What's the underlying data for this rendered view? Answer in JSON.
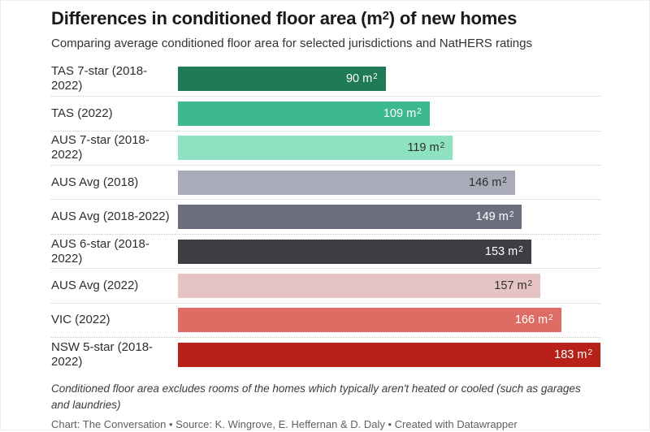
{
  "header": {
    "title_pre": "Differences in conditioned floor area (m",
    "title_sup": "2",
    "title_post": ") of new homes",
    "subtitle": "Comparing average conditioned floor area for selected jurisdictions and NatHERS ratings"
  },
  "chart_data": {
    "type": "bar",
    "orientation": "horizontal",
    "title": "Differences in conditioned floor area (m2) of new homes",
    "subtitle": "Comparing average conditioned floor area for selected jurisdictions and NatHERS ratings",
    "unit_letter": "m",
    "unit_sup": "2",
    "xlim": [
      0,
      183
    ],
    "grid": "dotted row separators",
    "value_labels_position": "inside-right",
    "categories": [
      "TAS 7-star (2018-2022)",
      "TAS (2022)",
      "AUS 7-star (2018-2022)",
      "AUS Avg (2018)",
      "AUS Avg (2018-2022)",
      "AUS 6-star (2018-2022)",
      "AUS Avg (2022)",
      "VIC (2022)",
      "NSW 5-star (2018-2022)"
    ],
    "values": [
      90,
      109,
      119,
      146,
      149,
      153,
      157,
      166,
      183
    ],
    "rows": [
      {
        "label": "TAS 7-star (2018-2022)",
        "value": 90,
        "color": "#1e7a57",
        "text_color": "#ffffff"
      },
      {
        "label": "TAS (2022)",
        "value": 109,
        "color": "#3dba8d",
        "text_color": "#ffffff"
      },
      {
        "label": "AUS 7-star (2018-2022)",
        "value": 119,
        "color": "#8fe2c1",
        "text_color": "#2f2f2f"
      },
      {
        "label": "AUS Avg (2018)",
        "value": 146,
        "color": "#a9abb8",
        "text_color": "#2f2f2f"
      },
      {
        "label": "AUS Avg (2018-2022)",
        "value": 149,
        "color": "#6b6e7e",
        "text_color": "#ffffff"
      },
      {
        "label": "AUS 6-star (2018-2022)",
        "value": 153,
        "color": "#3e3d43",
        "text_color": "#ffffff"
      },
      {
        "label": "AUS Avg (2022)",
        "value": 157,
        "color": "#e6c3c4",
        "text_color": "#2f2f2f"
      },
      {
        "label": "VIC (2022)",
        "value": 166,
        "color": "#dd6d64",
        "text_color": "#ffffff"
      },
      {
        "label": "NSW 5-star (2018-2022)",
        "value": 183,
        "color": "#b7211a",
        "text_color": "#ffffff"
      }
    ]
  },
  "footer": {
    "note": "Conditioned floor area excludes rooms of the homes which typically aren't heated or cooled (such as garages and laundries)",
    "byline": "Chart: The Conversation • Source: K. Wingrove, E. Heffernan & D. Daly • Created with Datawrapper"
  }
}
